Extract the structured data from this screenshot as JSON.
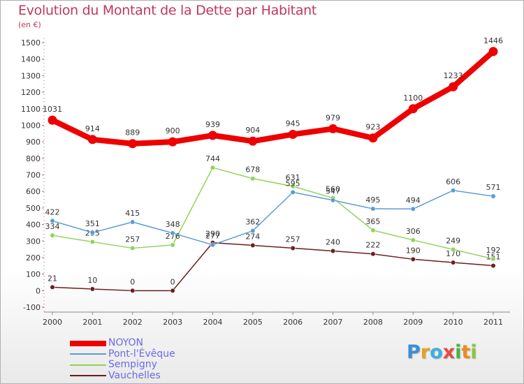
{
  "chart_data": {
    "type": "line",
    "title": "Evolution du Montant de la Dette par Habitant",
    "subtitle": "(en €)",
    "x": [
      "2000",
      "2001",
      "2002",
      "2003",
      "2004",
      "2005",
      "2006",
      "2007",
      "2008",
      "2009",
      "2010",
      "2011"
    ],
    "ylim": [
      -100,
      1500
    ],
    "yticks": [
      -100,
      0,
      100,
      200,
      300,
      400,
      500,
      600,
      700,
      800,
      900,
      1000,
      1100,
      1200,
      1300,
      1400,
      1500
    ],
    "grid": false,
    "legend_position": "bottom-left",
    "series": [
      {
        "name": "NOYON",
        "color": "#ee0000",
        "values": [
          1031,
          914,
          889,
          900,
          939,
          904,
          945,
          979,
          923,
          1100,
          1233,
          1446
        ]
      },
      {
        "name": "Pont-l'Évêque",
        "color": "#5b9bd5",
        "values": [
          422,
          351,
          415,
          348,
          277,
          362,
          595,
          547,
          495,
          494,
          606,
          571
        ]
      },
      {
        "name": "Sempigny",
        "color": "#8fd45a",
        "values": [
          334,
          295,
          257,
          276,
          744,
          678,
          631,
          560,
          365,
          306,
          249,
          192
        ]
      },
      {
        "name": "Vauchelles",
        "color": "#6b1e1e",
        "values": [
          21,
          10,
          0,
          0,
          290,
          274,
          257,
          240,
          222,
          190,
          170,
          151
        ]
      }
    ]
  },
  "brand": {
    "letters": [
      "P",
      "r",
      "o",
      "x",
      "i",
      "t",
      "i"
    ],
    "colors": [
      "#3a8fd8",
      "#e8a020",
      "#3ab0e0",
      "#e84848",
      "#40b840",
      "#f08a20",
      "#88c838"
    ]
  }
}
